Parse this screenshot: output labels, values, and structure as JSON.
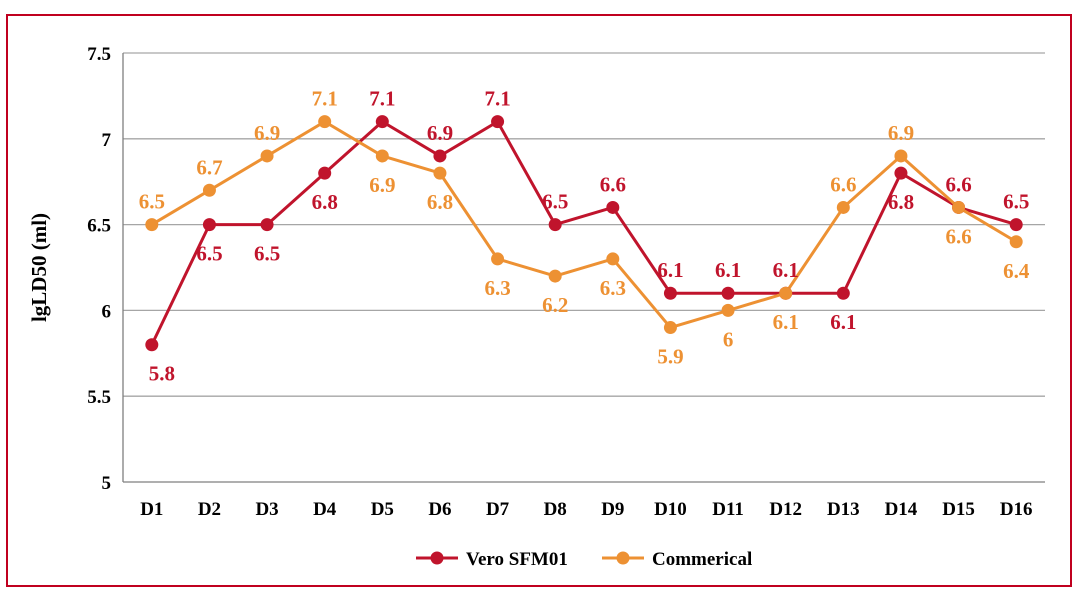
{
  "chart_data": {
    "type": "line",
    "categories": [
      "D1",
      "D2",
      "D3",
      "D4",
      "D5",
      "D6",
      "D7",
      "D8",
      "D9",
      "D10",
      "D11",
      "D12",
      "D13",
      "D14",
      "D15",
      "D16"
    ],
    "ylabel": "lgLD50 (ml)",
    "ylim": [
      5,
      7.5
    ],
    "yticks": [
      "5",
      "5.5",
      "6",
      "6.5",
      "7",
      "7.5"
    ],
    "grid": true,
    "legend_position": "bottom",
    "series": [
      {
        "name": "Vero SFM01",
        "color": "#c0142c",
        "values": [
          5.8,
          6.5,
          6.5,
          6.8,
          7.1,
          6.9,
          7.1,
          6.5,
          6.6,
          6.1,
          6.1,
          6.1,
          6.1,
          6.8,
          6.6,
          6.5
        ],
        "labels": [
          "5.8",
          "6.5",
          "6.5",
          "6.8",
          "7.1",
          "6.9",
          "7.1",
          "6.5",
          "6.6",
          "6.1",
          "6.1",
          "6.1",
          "6.1",
          "6.8",
          "6.6",
          "6.5"
        ]
      },
      {
        "name": "Commerical",
        "color": "#ed9133",
        "values": [
          6.5,
          6.7,
          6.9,
          7.1,
          6.9,
          6.8,
          6.3,
          6.2,
          6.3,
          5.9,
          6.0,
          6.1,
          6.6,
          6.9,
          6.6,
          6.4
        ],
        "labels": [
          "6.5",
          "6.7",
          "6.9",
          "7.1",
          "6.9",
          "6.8",
          "6.3",
          "6.2",
          "6.3",
          "5.9",
          "6",
          "6.1",
          "6.6",
          "6.9",
          "6.6",
          "6.4"
        ]
      }
    ]
  }
}
